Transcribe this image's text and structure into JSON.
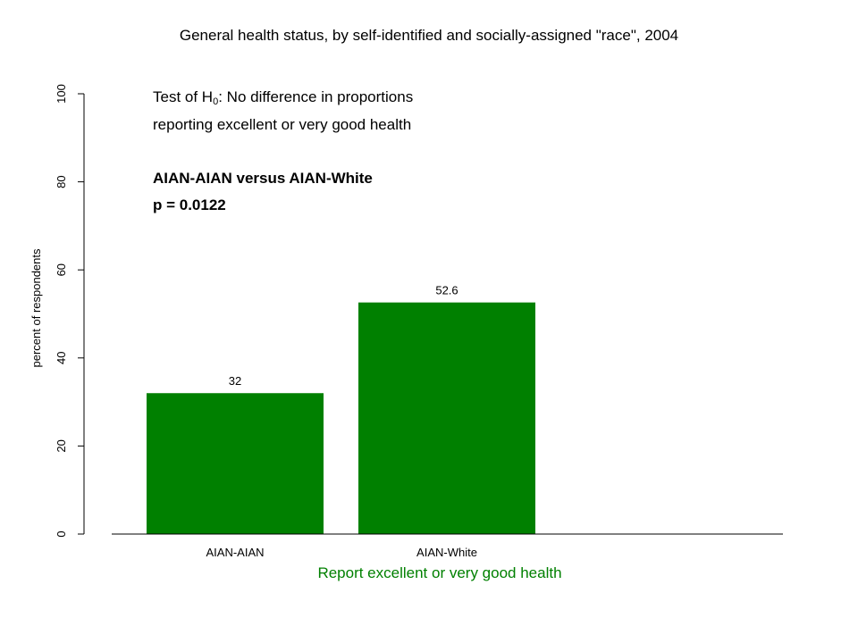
{
  "chart_data": {
    "type": "bar",
    "title": "General health status, by self-identified and socially-assigned \"race\", 2004",
    "categories": [
      "AIAN-AIAN",
      "AIAN-White"
    ],
    "values": [
      32,
      52.6
    ],
    "data_labels": [
      "32",
      "52.6"
    ],
    "xlabel": "Report excellent or very good health",
    "ylabel": "percent of respondents",
    "ylim": [
      0,
      100
    ],
    "yticks": [
      "0",
      "20",
      "40",
      "60",
      "80",
      "100"
    ],
    "grid": false,
    "bar_color": "#008000",
    "xlabel_color": "#008000",
    "annotations": {
      "test_prefix": "Test of H",
      "test_sub": "0",
      "test_suffix": ":  No difference in proportions",
      "line2": "reporting excellent or very good health",
      "comparison": "AIAN-AIAN versus AIAN-White",
      "p_value": "p = 0.0122"
    }
  }
}
